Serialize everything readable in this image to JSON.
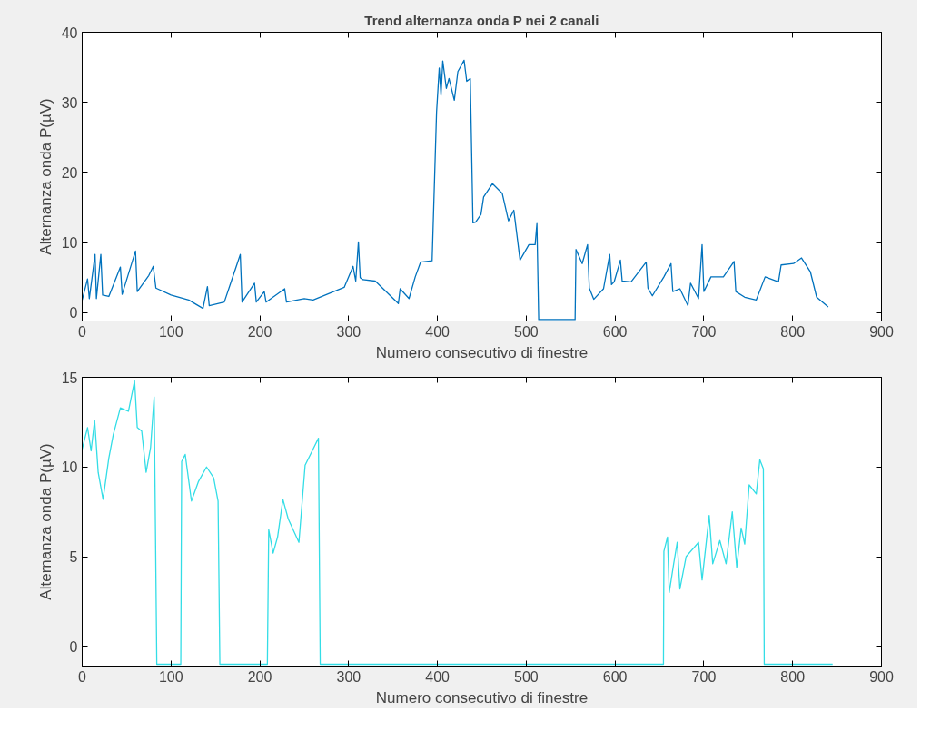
{
  "chart_data": [
    {
      "type": "line",
      "title": "Trend alternanza onda P nei 2 canali",
      "xlabel": "Numero consecutivo di finestre",
      "ylabel": "Alternanza onda P(µV)",
      "xlim": [
        0,
        900
      ],
      "ylim": [
        -1.2,
        40
      ],
      "xticks": [
        0,
        100,
        200,
        300,
        400,
        500,
        600,
        700,
        800,
        900
      ],
      "yticks": [
        0,
        10,
        20,
        30,
        40
      ],
      "grid": false,
      "series": [
        {
          "color": "#0072bd",
          "x": [
            0,
            6,
            8,
            14.5,
            16,
            21,
            23,
            30,
            43,
            45,
            60,
            62,
            75,
            80,
            83,
            100,
            120,
            136,
            141,
            143,
            160,
            178,
            180,
            194,
            196,
            205,
            207,
            228,
            230,
            250,
            260,
            295,
            305,
            308,
            311,
            313,
            316,
            330,
            356,
            358,
            368,
            375,
            381,
            394,
            399,
            402,
            404,
            406,
            410,
            413,
            419,
            423,
            430,
            433,
            437,
            440,
            443,
            449,
            452,
            462,
            473,
            480,
            486,
            493,
            503,
            510,
            512,
            514,
            555,
            556,
            563,
            569,
            571,
            576,
            587,
            594,
            596,
            599,
            606,
            608,
            618,
            635,
            637,
            642,
            655,
            663,
            665,
            673,
            682,
            685,
            694,
            698,
            700,
            708,
            722,
            734,
            736,
            746,
            759,
            769,
            784,
            787,
            801,
            810,
            820,
            827,
            840
          ],
          "values": [
            1.8,
            4.8,
            2,
            8.3,
            2,
            8.3,
            2.5,
            2.3,
            6.5,
            2.6,
            8.8,
            3,
            5.3,
            6.6,
            3.5,
            2.5,
            1.8,
            0.6,
            3.7,
            1,
            1.5,
            8.3,
            1.5,
            4.2,
            1.5,
            3,
            1.5,
            3.4,
            1.5,
            2,
            1.8,
            3.6,
            6.6,
            4.5,
            10.1,
            5,
            4.7,
            4.5,
            1.3,
            3.4,
            2,
            5.1,
            7.2,
            7.4,
            28.6,
            34.9,
            31,
            35.9,
            32,
            33.4,
            30.3,
            34.4,
            36,
            33,
            33.4,
            12.8,
            12.9,
            14,
            16.5,
            18.4,
            17,
            13.1,
            14.6,
            7.5,
            9.7,
            9.7,
            12.7,
            -1,
            -1,
            9,
            7,
            9.7,
            3.5,
            1.9,
            3.4,
            8.3,
            4,
            4.4,
            7.5,
            4.5,
            4.4,
            7.2,
            3.5,
            2.4,
            5.1,
            7,
            3,
            3.4,
            1,
            4.2,
            2,
            9.7,
            3,
            5.1,
            5.1,
            7.3,
            3,
            2.2,
            1.8,
            5.1,
            4.4,
            6.8,
            7,
            7.8,
            5.8,
            2.2,
            0.8
          ]
        }
      ]
    },
    {
      "type": "line",
      "xlabel": "Numero consecutivo di finestre",
      "ylabel": "Alternanza onda P(µV)",
      "xlim": [
        0,
        900
      ],
      "ylim": [
        -1.1,
        15
      ],
      "xticks": [
        0,
        100,
        200,
        300,
        400,
        500,
        600,
        700,
        800,
        900
      ],
      "yticks": [
        0,
        5,
        10,
        15
      ],
      "grid": false,
      "series": [
        {
          "color": "#33dde6",
          "x": [
            0,
            6,
            10,
            14,
            18,
            23.5,
            30,
            35,
            43,
            52,
            59,
            62,
            67,
            72,
            77,
            81,
            84,
            111,
            112,
            116,
            123,
            131,
            140,
            148,
            153,
            155,
            208.5,
            210,
            215,
            220,
            226,
            232,
            244,
            251,
            259,
            266,
            268,
            654.5,
            655,
            659,
            661,
            666,
            670,
            673,
            680,
            694,
            698,
            706,
            710,
            718,
            725,
            732,
            737,
            742,
            746,
            751,
            759,
            763,
            767,
            768,
            845
          ],
          "values": [
            11,
            12.2,
            10.9,
            12.6,
            9.7,
            8.2,
            10.5,
            11.8,
            13.3,
            13.1,
            14.8,
            12.2,
            12,
            9.7,
            11.1,
            13.9,
            -1,
            -1,
            10.3,
            10.7,
            8.1,
            9.2,
            10,
            9.4,
            8.1,
            -1,
            -1,
            6.5,
            5.2,
            6.1,
            8.2,
            7.1,
            5.8,
            10.1,
            10.9,
            11.6,
            -1,
            -1,
            5.3,
            6.1,
            3,
            4.6,
            5.8,
            3.2,
            5,
            5.8,
            3.7,
            7.3,
            4.6,
            5.9,
            4.6,
            7.5,
            4.4,
            6.6,
            5.7,
            9,
            8.5,
            10.4,
            9.9,
            -1,
            -1
          ]
        }
      ]
    }
  ]
}
